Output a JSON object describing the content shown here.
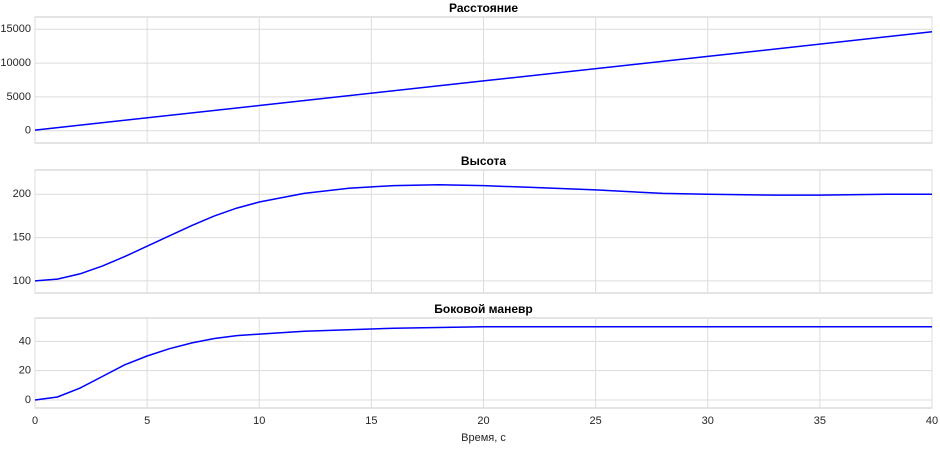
{
  "chart_data": [
    {
      "type": "line",
      "title": "Расстояние",
      "x": [
        0,
        10,
        20,
        30,
        40
      ],
      "series": [
        {
          "color": "#0000ff",
          "values": [
            100,
            3730,
            7360,
            10990,
            14620
          ]
        }
      ],
      "xlim": [
        0,
        40
      ],
      "xticks": [
        0,
        5,
        10,
        15,
        20,
        25,
        30,
        35,
        40
      ],
      "show_xtick_labels": false,
      "ylim": [
        -1800,
        16800
      ],
      "yticks": [
        0,
        5000,
        10000,
        15000
      ],
      "grid": true
    },
    {
      "type": "line",
      "title": "Высота",
      "x": [
        0,
        1,
        2,
        3,
        4,
        5,
        6,
        7,
        8,
        9,
        10,
        12,
        14,
        16,
        18,
        20,
        22,
        25,
        28,
        30,
        33,
        35,
        38,
        40
      ],
      "series": [
        {
          "color": "#0000ff",
          "values": [
            100,
            102,
            108,
            117,
            128,
            140,
            152,
            164,
            175,
            184,
            191,
            201,
            207,
            210,
            211,
            210,
            208,
            205,
            201,
            200,
            199,
            199,
            200,
            200
          ]
        }
      ],
      "xlim": [
        0,
        40
      ],
      "xticks": [
        0,
        5,
        10,
        15,
        20,
        25,
        30,
        35,
        40
      ],
      "show_xtick_labels": false,
      "ylim": [
        86,
        228
      ],
      "yticks": [
        100,
        150,
        200
      ],
      "grid": true
    },
    {
      "type": "line",
      "title": "Боковой маневр",
      "xlabel": "Время, с",
      "x": [
        0,
        1,
        2,
        3,
        4,
        5,
        6,
        7,
        8,
        9,
        10,
        12,
        14,
        16,
        18,
        20,
        22,
        25,
        28,
        30,
        33,
        35,
        38,
        40
      ],
      "series": [
        {
          "color": "#0000ff",
          "values": [
            0,
            2,
            8,
            16,
            24,
            30,
            35,
            39,
            42,
            44,
            45,
            47,
            48,
            49,
            49.5,
            50,
            50,
            50,
            50,
            50,
            50,
            50,
            50,
            50
          ]
        }
      ],
      "xlim": [
        0,
        40
      ],
      "xticks": [
        0,
        5,
        10,
        15,
        20,
        25,
        30,
        35,
        40
      ],
      "show_xtick_labels": true,
      "ylim": [
        -5.5,
        56
      ],
      "yticks": [
        0,
        20,
        40
      ],
      "grid": true
    }
  ]
}
